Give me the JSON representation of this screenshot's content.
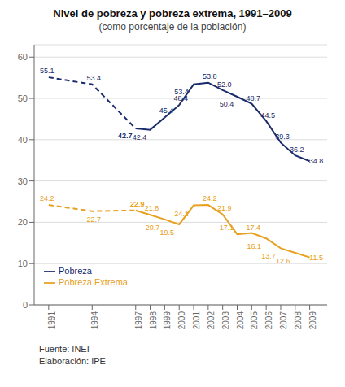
{
  "chart_data": {
    "type": "line",
    "title": "Nivel de pobreza y pobreza extrema, 1991–2009",
    "subtitle": "(como porcentaje de la población)",
    "x": [
      1991,
      1994,
      1997,
      1998,
      1999,
      2000,
      2001,
      2002,
      2003,
      2004,
      2005,
      2006,
      2007,
      2008,
      2009
    ],
    "xlim": [
      1990,
      2010.2
    ],
    "xticks": [
      1991,
      1994,
      1997,
      1998,
      1999,
      2000,
      2001,
      2002,
      2003,
      2004,
      2005,
      2006,
      2007,
      2008,
      2009
    ],
    "ylim": [
      0,
      63
    ],
    "yticks": [
      0,
      10,
      20,
      30,
      40,
      50,
      60
    ],
    "grid": true,
    "legend": "lower left",
    "data_labels": true,
    "series": [
      {
        "color": "#1a2b6b",
        "line_style": "dashed",
        "values": [
          55.1,
          53.4,
          42.7,
          null,
          null,
          null,
          null,
          null,
          null,
          null,
          null,
          null,
          null,
          null,
          null
        ]
      },
      {
        "color": "#e8a020",
        "line_style": "dashed",
        "values": [
          24.2,
          22.7,
          22.9,
          null,
          null,
          null,
          null,
          null,
          null,
          null,
          null,
          null,
          null,
          null,
          null
        ]
      },
      {
        "name": "Pobreza",
        "color": "#1a2b6b",
        "line_style": "solid",
        "values": [
          null,
          null,
          42.7,
          42.4,
          45.4,
          48.4,
          53.4,
          53.8,
          52.0,
          50.4,
          48.7,
          44.5,
          39.3,
          36.2,
          34.8
        ]
      },
      {
        "name": "Pobreza Extrema",
        "color": "#e8a020",
        "line_style": "solid",
        "values": [
          null,
          null,
          22.9,
          21.8,
          20.7,
          19.5,
          24.1,
          24.2,
          21.9,
          17.1,
          17.4,
          16.1,
          13.7,
          12.6,
          11.5
        ]
      }
    ],
    "annotations": [
      "Fuente: INEI",
      "Elaboración: IPE"
    ]
  }
}
